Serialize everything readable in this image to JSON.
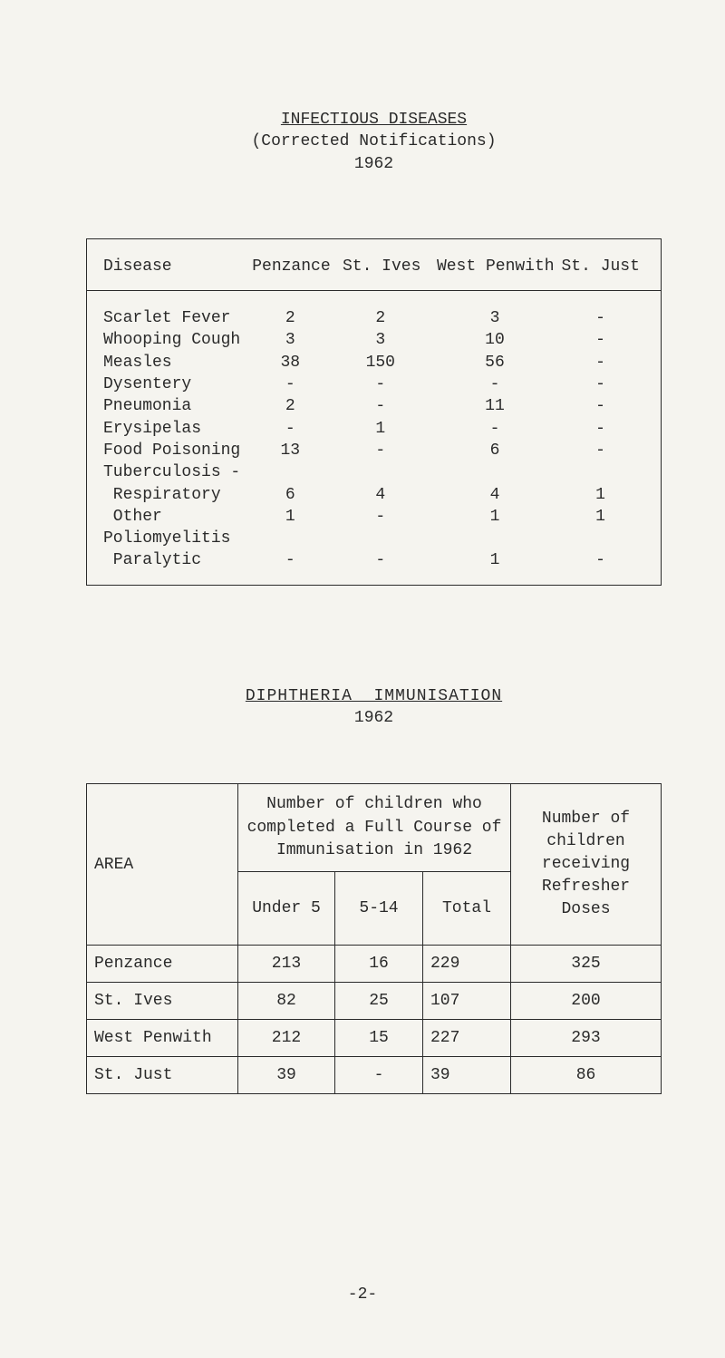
{
  "header1": {
    "line1": "INFECTIOUS DISEASES",
    "line2": "(Corrected Notifications)",
    "line3": "1962"
  },
  "table1": {
    "columns": {
      "disease": "Disease",
      "penzance": "Penzance",
      "stives": "St. Ives",
      "westpenwith": "West Penwith",
      "stjust": "St. Just"
    },
    "rows": [
      {
        "disease": "Scarlet Fever",
        "penzance": "2",
        "stives": "2",
        "westpenwith": "3",
        "stjust": "-"
      },
      {
        "disease": "Whooping Cough",
        "penzance": "3",
        "stives": "3",
        "westpenwith": "10",
        "stjust": "-"
      },
      {
        "disease": "Measles",
        "penzance": "38",
        "stives": "150",
        "westpenwith": "56",
        "stjust": "-"
      },
      {
        "disease": "Dysentery",
        "penzance": "-",
        "stives": "-",
        "westpenwith": "-",
        "stjust": "-"
      },
      {
        "disease": "Pneumonia",
        "penzance": "2",
        "stives": "-",
        "westpenwith": "11",
        "stjust": "-"
      },
      {
        "disease": "Erysipelas",
        "penzance": "-",
        "stives": "1",
        "westpenwith": "-",
        "stjust": "-"
      },
      {
        "disease": "Food Poisoning",
        "penzance": "13",
        "stives": "-",
        "westpenwith": "6",
        "stjust": "-"
      },
      {
        "disease": "Tuberculosis -",
        "penzance": "",
        "stives": "",
        "westpenwith": "",
        "stjust": ""
      },
      {
        "disease": " Respiratory",
        "penzance": "6",
        "stives": "4",
        "westpenwith": "4",
        "stjust": "1"
      },
      {
        "disease": " Other",
        "penzance": "1",
        "stives": "-",
        "westpenwith": "1",
        "stjust": "1"
      },
      {
        "disease": "Poliomyelitis",
        "penzance": "",
        "stives": "",
        "westpenwith": "",
        "stjust": ""
      },
      {
        "disease": " Paralytic",
        "penzance": "-",
        "stives": "-",
        "westpenwith": "1",
        "stjust": "-"
      }
    ]
  },
  "header2": {
    "line1": "DIPHTHERIA  IMMUNISATION",
    "line2": "1962"
  },
  "table2": {
    "area_label": "AREA",
    "full_course_label": "Number of children who completed a Full Course of Immunisation in 1962",
    "refresher_label": "Number of children receiving Refresher Doses",
    "sub_under5": "Under 5",
    "sub_5_14": "5-14",
    "sub_total": "Total",
    "rows": [
      {
        "area": "Penzance",
        "under5": "213",
        "five14": "16",
        "total": "229",
        "refresher": "325"
      },
      {
        "area": "St. Ives",
        "under5": "82",
        "five14": "25",
        "total": "107",
        "refresher": "200"
      },
      {
        "area": "West Penwith",
        "under5": "212",
        "five14": "15",
        "total": "227",
        "refresher": "293"
      },
      {
        "area": "St. Just",
        "under5": "39",
        "five14": "-",
        "total": "39",
        "refresher": "86"
      }
    ]
  },
  "page_number": "-2-"
}
